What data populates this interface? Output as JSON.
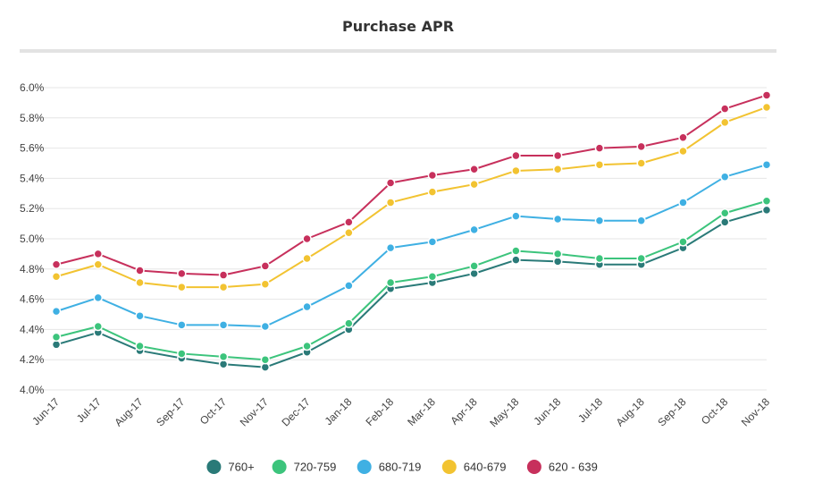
{
  "chart_data": {
    "type": "line",
    "title": "Purchase APR",
    "y_unit": "%",
    "ylim": [
      4.0,
      6.0
    ],
    "y_ticks": [
      "4.0%",
      "4.2%",
      "4.4%",
      "4.6%",
      "4.8%",
      "5.0%",
      "5.2%",
      "5.4%",
      "5.6%",
      "5.8%",
      "6.0%"
    ],
    "y_tick_values": [
      4.0,
      4.2,
      4.4,
      4.6,
      4.8,
      5.0,
      5.2,
      5.4,
      5.6,
      5.8,
      6.0
    ],
    "grid": true,
    "legend_position": "bottom",
    "categories": [
      "Jun-17",
      "Jul-17",
      "Aug-17",
      "Sep-17",
      "Oct-17",
      "Nov-17",
      "Dec-17",
      "Jan-18",
      "Feb-18",
      "Mar-18",
      "Apr-18",
      "May-18",
      "Jun-18",
      "Jul-18",
      "Aug-18",
      "Sep-18",
      "Oct-18",
      "Nov-18"
    ],
    "series": [
      {
        "name": "760+",
        "color": "#2a7a78",
        "values": [
          4.3,
          4.38,
          4.26,
          4.21,
          4.17,
          4.15,
          4.25,
          4.4,
          4.67,
          4.71,
          4.77,
          4.86,
          4.85,
          4.83,
          4.83,
          4.94,
          5.11,
          5.19
        ]
      },
      {
        "name": "720-759",
        "color": "#3cc47c",
        "values": [
          4.35,
          4.42,
          4.29,
          4.24,
          4.22,
          4.2,
          4.29,
          4.44,
          4.71,
          4.75,
          4.82,
          4.92,
          4.9,
          4.87,
          4.87,
          4.98,
          5.17,
          5.25
        ]
      },
      {
        "name": "680-719",
        "color": "#3fb0e3",
        "values": [
          4.52,
          4.61,
          4.49,
          4.43,
          4.43,
          4.42,
          4.55,
          4.69,
          4.94,
          4.98,
          5.06,
          5.15,
          5.13,
          5.12,
          5.12,
          5.24,
          5.41,
          5.49
        ]
      },
      {
        "name": "640-679",
        "color": "#f2c331",
        "values": [
          4.75,
          4.83,
          4.71,
          4.68,
          4.68,
          4.7,
          4.87,
          5.04,
          5.24,
          5.31,
          5.36,
          5.45,
          5.46,
          5.49,
          5.5,
          5.58,
          5.77,
          5.87
        ]
      },
      {
        "name": "620 - 639",
        "color": "#c7305c",
        "values": [
          4.83,
          4.9,
          4.79,
          4.77,
          4.76,
          4.82,
          5.0,
          5.11,
          5.37,
          5.42,
          5.46,
          5.55,
          5.55,
          5.6,
          5.61,
          5.67,
          5.86,
          5.95
        ]
      }
    ]
  }
}
